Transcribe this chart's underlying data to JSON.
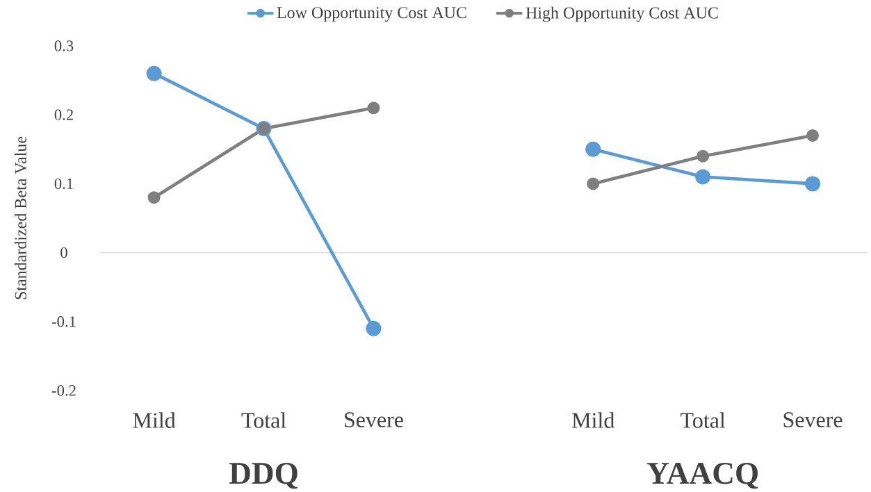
{
  "chart_data": {
    "type": "line",
    "ylabel": "Standardized Beta Value",
    "categories": [
      "Mild",
      "Total",
      "Severe",
      null,
      "Mild",
      "Total",
      "Severe"
    ],
    "series": [
      {
        "name": "Low Opportunity Cost AUC",
        "color": "#5b9bd5",
        "values": [
          0.26,
          0.18,
          -0.11,
          null,
          0.15,
          0.11,
          0.1
        ]
      },
      {
        "name": "High Opportunity Cost AUC",
        "color": "#7f7f7f",
        "values": [
          0.08,
          0.18,
          0.21,
          null,
          0.1,
          0.14,
          0.17
        ]
      }
    ],
    "ylim": [
      -0.2,
      0.3
    ],
    "yticks": [
      -0.2,
      -0.1,
      0,
      0.1,
      0.2,
      0.3
    ],
    "ref_lines": [
      {
        "axis": "y",
        "value": 0,
        "color": "#d9d9d9"
      }
    ],
    "annotations": [
      "DDQ",
      "YAACQ"
    ],
    "legend": "top",
    "grid": false,
    "marker": "circle",
    "line_style": "solid"
  }
}
